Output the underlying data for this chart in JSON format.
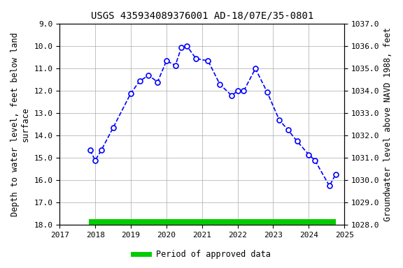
{
  "title": "USGS 435934089376001 AD-18/07E/35-0801",
  "ylabel_left": "Depth to water level, feet below land\nsurface",
  "ylabel_right": "Groundwater level above NAVD 1988, feet",
  "xlim": [
    2017,
    2025
  ],
  "ylim_left_top": 9.0,
  "ylim_left_bottom": 18.0,
  "ylim_right_top": 1037.0,
  "ylim_right_bottom": 1028.0,
  "yticks_left": [
    9.0,
    10.0,
    11.0,
    12.0,
    13.0,
    14.0,
    15.0,
    16.0,
    17.0,
    18.0
  ],
  "yticks_right": [
    1037.0,
    1036.0,
    1035.0,
    1034.0,
    1033.0,
    1032.0,
    1031.0,
    1030.0,
    1029.0,
    1028.0
  ],
  "xticks": [
    2017,
    2018,
    2019,
    2020,
    2021,
    2022,
    2023,
    2024,
    2025
  ],
  "data_x": [
    2017.85,
    2018.0,
    2018.17,
    2018.5,
    2019.0,
    2019.25,
    2019.5,
    2019.75,
    2020.0,
    2020.25,
    2020.42,
    2020.58,
    2020.83,
    2021.17,
    2021.5,
    2021.83,
    2022.0,
    2022.17,
    2022.5,
    2022.83,
    2023.17,
    2023.42,
    2023.67,
    2024.0,
    2024.17,
    2024.58,
    2024.75
  ],
  "data_y": [
    14.65,
    15.1,
    14.65,
    13.65,
    12.1,
    11.55,
    11.3,
    11.6,
    10.65,
    10.85,
    10.05,
    10.0,
    10.55,
    10.65,
    11.7,
    12.2,
    12.0,
    12.0,
    11.0,
    12.05,
    13.3,
    13.75,
    14.25,
    14.85,
    15.1,
    16.25,
    15.75
  ],
  "line_color": "#0000ff",
  "line_style": "--",
  "marker": "o",
  "marker_facecolor": "white",
  "marker_edgecolor": "#0000ff",
  "marker_size": 5,
  "marker_edgewidth": 1.2,
  "linewidth": 1.2,
  "green_bar_xstart": 2017.83,
  "green_bar_xend": 2024.75,
  "green_bar_y_left": 18.0,
  "green_bar_color": "#00cc00",
  "green_bar_thickness": 0.25,
  "background_color": "#ffffff",
  "grid_color": "#aaaaaa",
  "title_fontsize": 10,
  "axis_label_fontsize": 8.5,
  "tick_fontsize": 8,
  "legend_label": "Period of approved data",
  "legend_color": "#00cc00",
  "legend_linewidth": 5
}
